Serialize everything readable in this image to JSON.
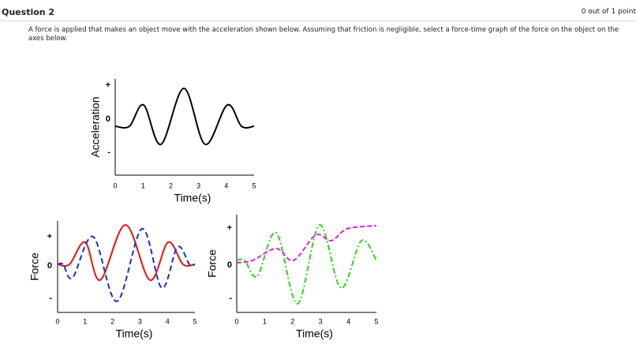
{
  "header": {
    "title": "Question 2",
    "points": "0 out of 1 point"
  },
  "prompt": "A force is applied that makes an object move with the acceleration shown below. Assuming that friction is negligible, select a force-time graph of the force on the object on the axes below.",
  "plots": [
    {
      "ylabel": "Acceleration",
      "xlabel": "Time(s)",
      "xticks": [
        "0",
        "1",
        "2",
        "3",
        "4",
        "5"
      ],
      "yticks": [
        "+",
        "0",
        "-"
      ]
    },
    {
      "ylabel": "Force",
      "xlabel": "Time(s)",
      "xticks": [
        "0",
        "1",
        "2",
        "3",
        "4",
        "5"
      ],
      "yticks": [
        "+",
        "0",
        "-"
      ]
    },
    {
      "ylabel": "Force",
      "xlabel": "Time(s)",
      "xticks": [
        "0",
        "1",
        "2",
        "3",
        "4",
        "5"
      ],
      "yticks": [
        "+",
        "0",
        "-"
      ]
    }
  ]
}
